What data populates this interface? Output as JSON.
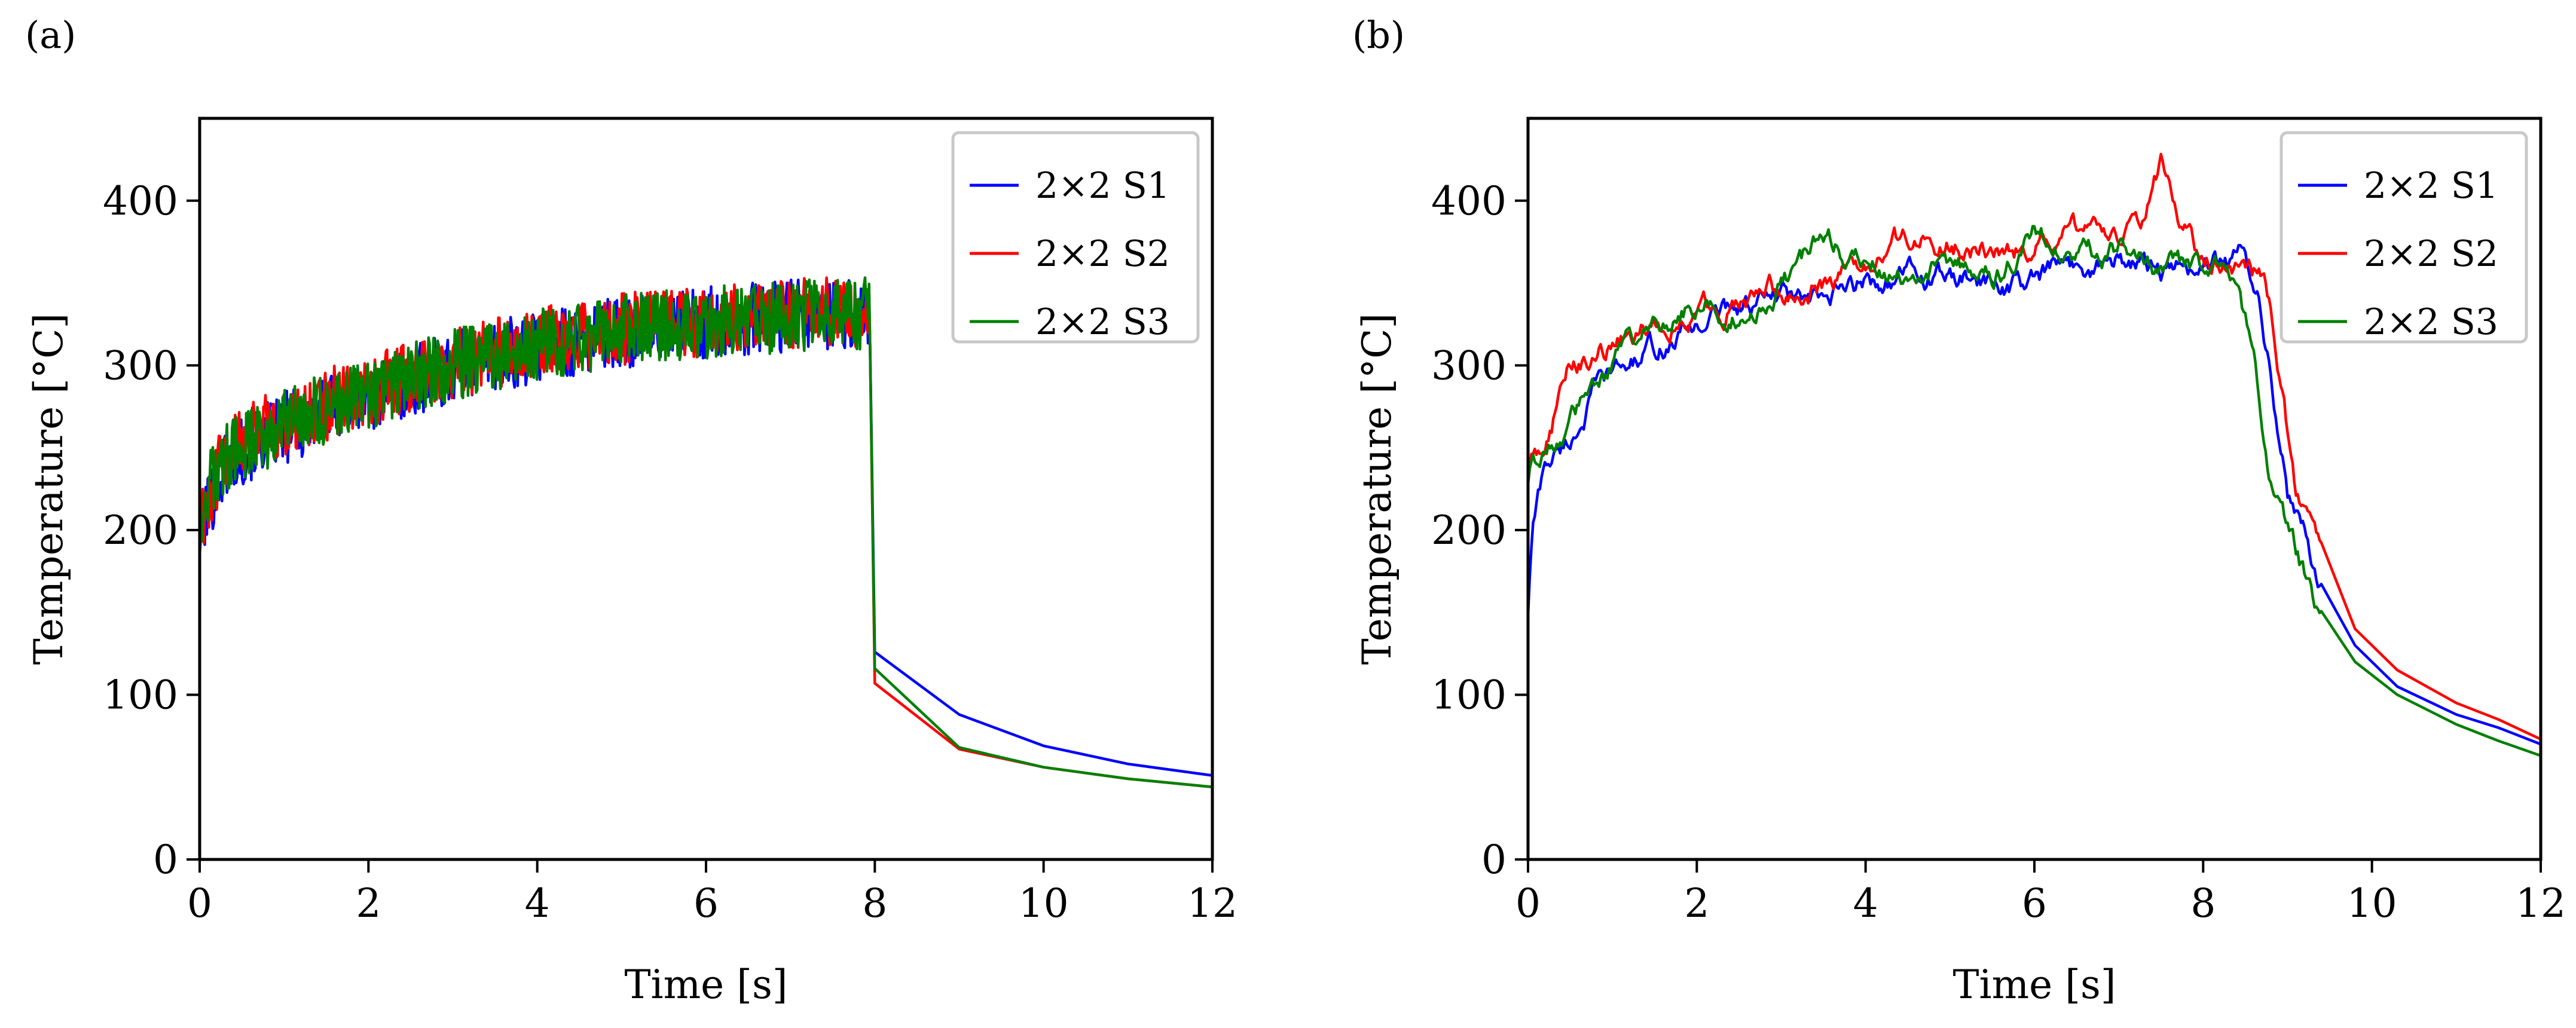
{
  "chart_data": [
    {
      "panel_label": "(a)",
      "type": "line",
      "title": "",
      "xlabel": "Time [s]",
      "ylabel": "Temperature [°C]",
      "xlim": [
        0,
        12
      ],
      "ylim": [
        0,
        450
      ],
      "xticks": [
        0,
        2,
        4,
        6,
        8,
        10,
        12
      ],
      "yticks": [
        0,
        100,
        200,
        300,
        400
      ],
      "grid": false,
      "legend_position": "top-right",
      "noise_amplitude": 22,
      "series": [
        {
          "name": "2×2 S1",
          "color": "#0000ff",
          "x": [
            0,
            0.1,
            0.3,
            0.6,
            1,
            1.5,
            2,
            2.5,
            3,
            3.5,
            4,
            4.5,
            5,
            5.5,
            6,
            6.5,
            7,
            7.5,
            7.95,
            8.0,
            9,
            10,
            11,
            12
          ],
          "y": [
            195,
            215,
            240,
            252,
            262,
            272,
            282,
            290,
            298,
            306,
            311,
            316,
            320,
            323,
            326,
            328,
            330,
            331,
            330,
            126,
            88,
            69,
            58,
            51
          ]
        },
        {
          "name": "2×2 S2",
          "color": "#ff0000",
          "x": [
            0,
            0.1,
            0.3,
            0.6,
            1,
            1.5,
            2,
            2.5,
            3,
            3.5,
            4,
            4.5,
            5,
            5.5,
            6,
            6.5,
            7,
            7.5,
            7.95,
            8.0,
            9,
            10,
            11,
            12
          ],
          "y": [
            205,
            222,
            245,
            255,
            266,
            276,
            285,
            293,
            301,
            308,
            313,
            318,
            322,
            325,
            327,
            329,
            331,
            332,
            330,
            107,
            67,
            56,
            49,
            44
          ]
        },
        {
          "name": "2×2 S3",
          "color": "#008000",
          "x": [
            0,
            0.1,
            0.3,
            0.6,
            1,
            1.5,
            2,
            2.5,
            3,
            3.5,
            4,
            4.5,
            5,
            5.5,
            6,
            6.5,
            7,
            7.5,
            7.95,
            8.0,
            9,
            10,
            11,
            12
          ],
          "y": [
            210,
            225,
            243,
            254,
            264,
            274,
            283,
            292,
            300,
            307,
            312,
            317,
            321,
            324,
            326,
            328,
            330,
            331,
            332,
            116,
            68,
            56,
            49,
            44
          ]
        }
      ]
    },
    {
      "panel_label": "(b)",
      "type": "line",
      "title": "",
      "xlabel": "Time [s]",
      "ylabel": "Temperature [°C]",
      "xlim": [
        0,
        12
      ],
      "ylim": [
        0,
        450
      ],
      "xticks": [
        0,
        2,
        4,
        6,
        8,
        10,
        12
      ],
      "yticks": [
        0,
        100,
        200,
        300,
        400
      ],
      "grid": false,
      "legend_position": "top-right",
      "noise_amplitude": 8,
      "series": [
        {
          "name": "2×2 S1",
          "color": "#0000ff",
          "x": [
            0,
            0.05,
            0.2,
            0.5,
            0.8,
            1.2,
            1.6,
            2,
            2.5,
            3,
            3.5,
            4,
            4.5,
            5,
            5.5,
            6,
            6.5,
            7,
            7.5,
            8,
            8.5,
            8.65,
            8.8,
            9,
            9.4,
            9.8,
            10.3,
            11,
            11.5,
            12
          ],
          "y": [
            150,
            200,
            240,
            255,
            285,
            300,
            312,
            325,
            338,
            340,
            335,
            350,
            355,
            352,
            348,
            350,
            360,
            365,
            355,
            360,
            365,
            350,
            300,
            225,
            165,
            130,
            105,
            88,
            80,
            70
          ]
        },
        {
          "name": "2×2 S2",
          "color": "#ff0000",
          "x": [
            0,
            0.05,
            0.2,
            0.5,
            0.8,
            1.2,
            1.6,
            2,
            2.5,
            3,
            3.5,
            4,
            4.5,
            5,
            5.5,
            6,
            6.5,
            7,
            7.3,
            7.5,
            7.7,
            8,
            8.5,
            8.75,
            8.9,
            9.1,
            9.4,
            9.8,
            10.3,
            11,
            11.5,
            12
          ],
          "y": [
            230,
            245,
            255,
            300,
            305,
            318,
            325,
            332,
            340,
            345,
            350,
            360,
            378,
            375,
            370,
            372,
            378,
            380,
            385,
            418,
            390,
            362,
            358,
            350,
            300,
            220,
            175,
            140,
            115,
            95,
            85,
            73
          ]
        },
        {
          "name": "2×2 S3",
          "color": "#008000",
          "x": [
            0,
            0.05,
            0.2,
            0.5,
            0.8,
            1.2,
            1.6,
            2,
            2.5,
            3,
            3.5,
            4,
            4.5,
            5,
            5.5,
            6,
            6.5,
            7,
            7.5,
            8,
            8.4,
            8.6,
            8.8,
            9,
            9.4,
            9.8,
            10.3,
            11,
            11.5,
            12
          ],
          "y": [
            230,
            245,
            248,
            265,
            290,
            310,
            325,
            340,
            335,
            348,
            375,
            360,
            358,
            362,
            352,
            380,
            365,
            370,
            360,
            358,
            352,
            300,
            230,
            195,
            145,
            120,
            100,
            82,
            72,
            63
          ]
        }
      ]
    }
  ]
}
